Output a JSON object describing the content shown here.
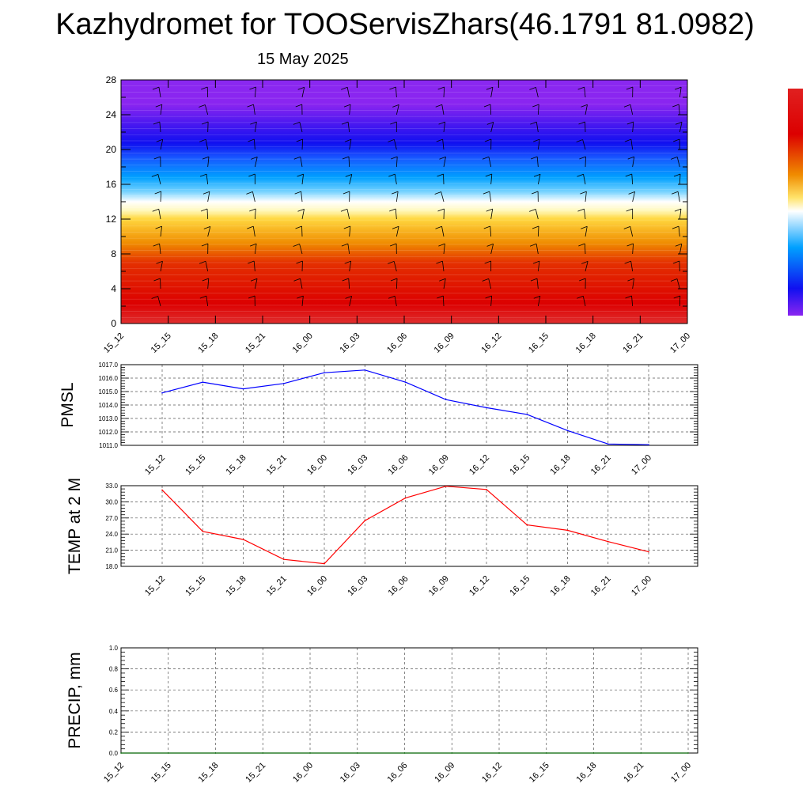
{
  "header": {
    "title": "Kazhydromet for TOOServisZhars(46.1791 81.0982)",
    "subtitle": "15 May 2025"
  },
  "chart_data": [
    {
      "type": "heatmap",
      "ylabel": "",
      "ylim": [
        0,
        28
      ],
      "yticks": [
        0,
        4,
        8,
        12,
        16,
        20,
        24,
        28
      ],
      "categories": [
        "15_12",
        "15_15",
        "15_18",
        "15_21",
        "16_00",
        "16_03",
        "16_06",
        "16_09",
        "16_12",
        "16_15",
        "16_18",
        "16_21",
        "17_00"
      ],
      "colormap": [
        "#dc0000",
        "#f08c00",
        "#ffe36a",
        "#ffffff",
        "#00a0ff",
        "#1010f0",
        "#8a25f0"
      ],
      "colorbar": true,
      "wind_barbs": true
    },
    {
      "type": "line",
      "ylabel": "PMSL",
      "ylim": [
        1011.0,
        1017.0
      ],
      "yticks": [
        "1011.0",
        "1012.0",
        "1013.0",
        "1014.0",
        "1015.0",
        "1016.0",
        "1017.0"
      ],
      "categories": [
        "15_12",
        "15_15",
        "15_18",
        "15_21",
        "16_00",
        "16_03",
        "16_06",
        "16_09",
        "16_12",
        "16_15",
        "16_18",
        "16_21",
        "17_00"
      ],
      "values": [
        1014.9,
        1015.7,
        1015.2,
        1015.6,
        1016.4,
        1016.6,
        1015.7,
        1014.4,
        1013.8,
        1013.3,
        1012.1,
        1011.1,
        1011.05
      ],
      "color": "#0000ff",
      "grid": true
    },
    {
      "type": "line",
      "ylabel": "TEMP at 2 M",
      "ylim": [
        18.0,
        33.0
      ],
      "yticks": [
        "18.0",
        "21.0",
        "24.0",
        "27.0",
        "30.0",
        "33.0"
      ],
      "categories": [
        "15_12",
        "15_15",
        "15_18",
        "15_21",
        "16_00",
        "16_03",
        "16_06",
        "16_09",
        "16_12",
        "16_15",
        "16_18",
        "16_21",
        "17_00"
      ],
      "values": [
        32.2,
        24.5,
        23.0,
        19.3,
        18.5,
        26.5,
        30.7,
        32.9,
        32.3,
        25.7,
        24.7,
        22.6,
        20.7
      ],
      "color": "#ff0000",
      "grid": true
    },
    {
      "type": "line",
      "ylabel": "PRECIP, mm",
      "ylim": [
        0.0,
        1.0
      ],
      "yticks": [
        "0.0",
        "0.2",
        "0.4",
        "0.6",
        "0.8",
        "1.0"
      ],
      "categories": [
        "15_12",
        "15_15",
        "15_18",
        "15_21",
        "16_00",
        "16_03",
        "16_06",
        "16_09",
        "16_12",
        "16_15",
        "16_18",
        "16_21",
        "17_00"
      ],
      "values": [
        0,
        0,
        0,
        0,
        0,
        0,
        0,
        0,
        0,
        0,
        0,
        0,
        0
      ],
      "color": "#006400",
      "grid": true
    }
  ]
}
